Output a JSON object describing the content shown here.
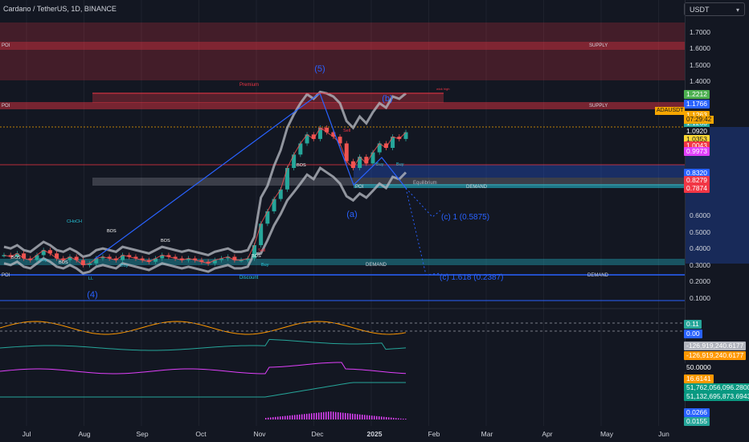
{
  "header": {
    "title": "Cardano / TetherUS, 1D, BINANCE",
    "currency": "USDT"
  },
  "colors": {
    "background": "#131722",
    "supply": "#f23645",
    "demand": "#26c6da",
    "wave": "#2962ff",
    "candle_up": "#26a69a",
    "candle_down": "#ef5350",
    "price_line": "#f7a600"
  },
  "chart_data": {
    "type": "line",
    "x": [
      "Jul",
      "Aug",
      "Sep",
      "Oct",
      "Nov",
      "Dec",
      "2025",
      "Feb",
      "Mar",
      "Apr",
      "May",
      "Jun"
    ],
    "ylim": [
      0.05,
      1.8
    ],
    "ticks": [
      "1.7000",
      "1.6000",
      "1.5000",
      "1.4000",
      "0.6000",
      "0.5000",
      "0.4000",
      "0.3000",
      "0.2000",
      "0.1000"
    ],
    "price_tags": [
      {
        "label": "1.2212",
        "value": 1.2212,
        "color": "#4caf50"
      },
      {
        "label": "1.1766",
        "value": 1.1766,
        "color": "#2962ff"
      },
      {
        "label": "1.1263",
        "value": 1.1263,
        "color": "#f7a600"
      },
      {
        "label": "1.1263",
        "value": 1.09,
        "color": "#26a69a"
      },
      {
        "label": "1.0920",
        "value": 1.055,
        "color": "#131722"
      },
      {
        "label": "1.0353",
        "value": 1.018,
        "color": "#fdd835"
      },
      {
        "label": "1.0043",
        "value": 0.99,
        "color": "#f23645"
      },
      {
        "label": "0.9973",
        "value": 0.965,
        "color": "#e040fb"
      },
      {
        "label": "0.8320",
        "value": 0.87,
        "color": "#2962ff"
      },
      {
        "label": "0.8279",
        "value": 0.835,
        "color": "#f23645"
      },
      {
        "label": "0.7874",
        "value": 0.8,
        "color": "#f23645"
      }
    ],
    "symbol_tag": "ADAUSDT",
    "countdown": "07:29:42",
    "zones": {
      "supply_label": "SUPPLY",
      "demand_label": "DEMAND",
      "poi_label": "POI",
      "premium_label": "Premium",
      "discount_label": "Discount",
      "equilibrium_label": "Equilibrium",
      "wick_label": "wick high"
    },
    "waves": [
      "(5)",
      "(4)",
      "(b)",
      "(a)",
      "(c) 1 (0.5875)",
      "(c) 1.618 (0.2387)"
    ],
    "structure_labels": [
      "BOS",
      "BOS",
      "BOS",
      "BOS",
      "BOS",
      "CHoCH",
      "BOS",
      "LL",
      "Buy",
      "Buy",
      "Sell",
      "Sell",
      "Buy",
      "Sell",
      "Buy",
      "Buy"
    ],
    "close_series": [
      0.36,
      0.35,
      0.37,
      0.34,
      0.33,
      0.36,
      0.39,
      0.37,
      0.34,
      0.33,
      0.35,
      0.33,
      0.3,
      0.31,
      0.34,
      0.35,
      0.34,
      0.33,
      0.36,
      0.35,
      0.34,
      0.33,
      0.32,
      0.34,
      0.36,
      0.35,
      0.34,
      0.33,
      0.34,
      0.33,
      0.32,
      0.31,
      0.33,
      0.34,
      0.35,
      0.33,
      0.33,
      0.34,
      0.42,
      0.55,
      0.63,
      0.72,
      0.79,
      0.89,
      0.95,
      1.0,
      1.04,
      1.02,
      1.07,
      1.05,
      1.03,
      1.0,
      0.92,
      0.89,
      0.94,
      0.91,
      0.96,
      1.0,
      0.98,
      1.03,
      1.02,
      1.05
    ],
    "sub_panels": [
      {
        "labels": [
          "0.11",
          "0.00"
        ],
        "colors": [
          "#26a69a",
          "#2962ff"
        ]
      },
      {
        "labels": [
          "-126,919,240.6177",
          "-126,919,240.6177"
        ],
        "colors": [
          "#b2b5be",
          "#ff9800"
        ]
      },
      {
        "labels": [
          "50.0000",
          "16.6141"
        ],
        "colors": [
          "#131722",
          "#ff9800"
        ]
      },
      {
        "labels": [
          "51,762,056,096.2800",
          "51,132,695,873.6943"
        ],
        "colors": [
          "#089981",
          "#089981"
        ]
      },
      {
        "labels": [
          "0.0266",
          "0.0155"
        ],
        "colors": [
          "#2962ff",
          "#26a69a"
        ]
      }
    ]
  }
}
